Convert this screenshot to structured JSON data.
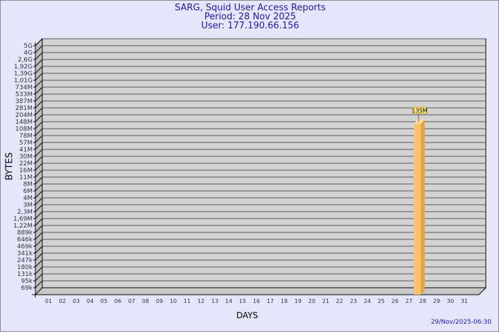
{
  "header": {
    "title": "SARG, Squid User Access Reports",
    "period": "Period: 28 Nov 2025",
    "user": "User: 177.190.66.156"
  },
  "footer": {
    "timestamp": "29/Nov/2025-06:30"
  },
  "chart_data": {
    "type": "bar",
    "xlabel": "DAYS",
    "ylabel": "BYTES",
    "y_scale": "log",
    "y_ticks": [
      "5G",
      "4G",
      "2,6G",
      "1,92G",
      "1,39G",
      "1,01G",
      "734M",
      "533M",
      "387M",
      "281M",
      "204M",
      "148M",
      "108M",
      "78M",
      "57M",
      "41M",
      "30M",
      "22M",
      "16M",
      "11M",
      "8M",
      "6M",
      "4M",
      "3M",
      "2,3M",
      "1,69M",
      "1,22M",
      "889k",
      "646k",
      "469k",
      "341k",
      "247k",
      "180k",
      "131k",
      "95k",
      "69k"
    ],
    "categories": [
      "01",
      "02",
      "03",
      "04",
      "05",
      "06",
      "07",
      "08",
      "09",
      "10",
      "11",
      "12",
      "13",
      "14",
      "15",
      "16",
      "17",
      "18",
      "19",
      "20",
      "21",
      "22",
      "23",
      "24",
      "25",
      "26",
      "27",
      "28",
      "29",
      "30",
      "31"
    ],
    "values": [
      null,
      null,
      null,
      null,
      null,
      null,
      null,
      null,
      null,
      null,
      null,
      null,
      null,
      null,
      null,
      null,
      null,
      null,
      null,
      null,
      null,
      null,
      null,
      null,
      null,
      null,
      null,
      135000000,
      null,
      null,
      null
    ],
    "data_labels": {
      "28": "135M"
    },
    "grid": true,
    "colors": {
      "bar": "#fcc46a",
      "bar_side": "#e0a64c",
      "wall": "#d3d3d3",
      "title": "#1a1aa6"
    }
  }
}
